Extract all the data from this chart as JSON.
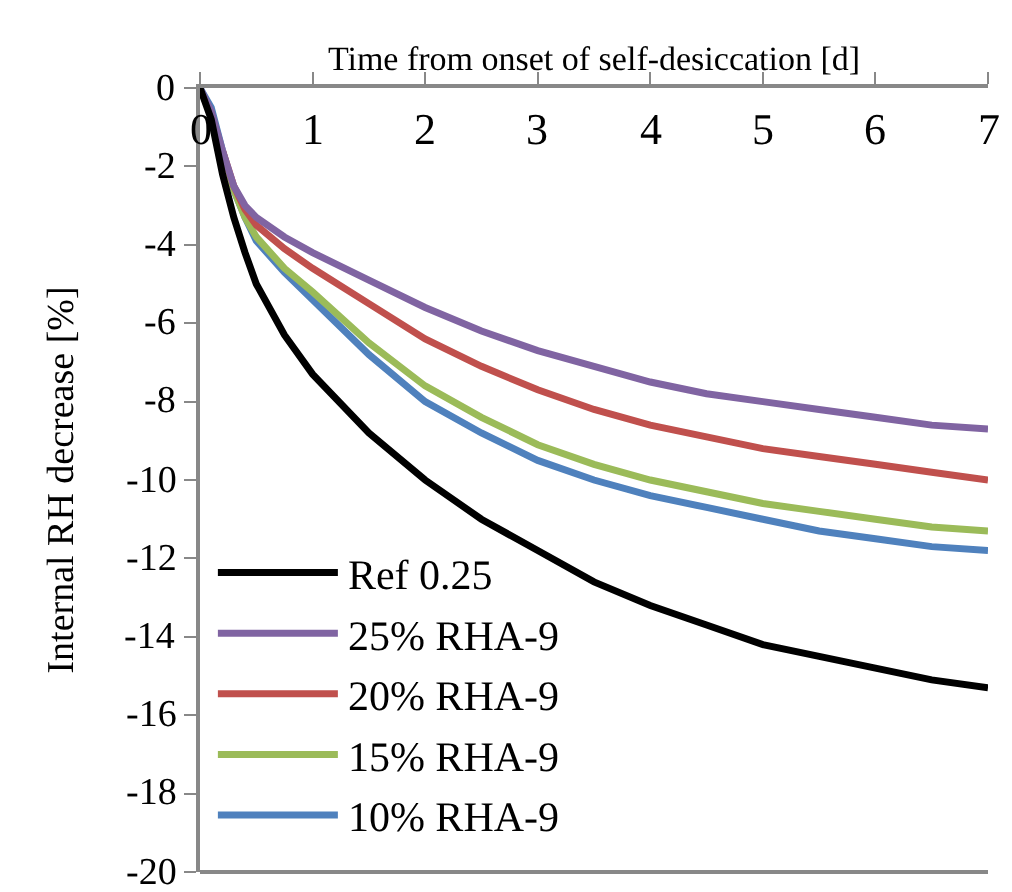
{
  "chart_data": {
    "type": "line",
    "xlabel": "Time from onset of self-desiccation [d]",
    "ylabel": "Internal RH decrease [%]",
    "x": [
      0,
      0.1,
      0.2,
      0.3,
      0.4,
      0.5,
      0.75,
      1,
      1.5,
      2,
      2.5,
      3,
      3.5,
      4,
      4.5,
      5,
      5.5,
      6,
      6.5,
      7
    ],
    "series": [
      {
        "name": "Ref 0.25",
        "color": "#000000",
        "values": [
          0,
          -0.8,
          -2.2,
          -3.3,
          -4.2,
          -5,
          -6.3,
          -7.3,
          -8.8,
          -10,
          -11,
          -11.8,
          -12.6,
          -13.2,
          -13.7,
          -14.2,
          -14.5,
          -14.8,
          -15.1,
          -15.3
        ]
      },
      {
        "name": "25% RHA-9",
        "color": "#8064a2",
        "values": [
          0,
          -0.6,
          -1.6,
          -2.5,
          -3,
          -3.3,
          -3.8,
          -4.2,
          -4.9,
          -5.6,
          -6.2,
          -6.7,
          -7.1,
          -7.5,
          -7.8,
          -8,
          -8.2,
          -8.4,
          -8.6,
          -8.7
        ]
      },
      {
        "name": "20% RHA-9",
        "color": "#c0504d",
        "values": [
          null,
          null,
          -1.6,
          -2.5,
          -3.1,
          -3.5,
          -4.1,
          -4.6,
          -5.5,
          -6.4,
          -7.1,
          -7.7,
          -8.2,
          -8.6,
          -8.9,
          -9.2,
          -9.4,
          -9.6,
          -9.8,
          -10
        ]
      },
      {
        "name": "15% RHA-9",
        "color": "#9bbb59",
        "values": [
          null,
          null,
          -1.7,
          -2.6,
          -3.3,
          -3.8,
          -4.6,
          -5.2,
          -6.5,
          -7.6,
          -8.4,
          -9.1,
          -9.6,
          -10,
          -10.3,
          -10.6,
          -10.8,
          -11,
          -11.2,
          -11.3
        ]
      },
      {
        "name": "10% RHA-9",
        "color": "#4f81bd",
        "values": [
          0,
          -0.5,
          -1.6,
          -2.6,
          -3.3,
          -3.9,
          -4.7,
          -5.4,
          -6.8,
          -8,
          -8.8,
          -9.5,
          -10,
          -10.4,
          -10.7,
          -11,
          -11.3,
          -11.5,
          -11.7,
          -11.8
        ]
      }
    ],
    "xlim": [
      0,
      7
    ],
    "xticks": [
      0,
      1,
      2,
      3,
      4,
      5,
      6,
      7
    ],
    "ylim": [
      -20,
      0
    ],
    "yticks": [
      -20,
      -18,
      -16,
      -14,
      -12,
      -10,
      -8,
      -6,
      -4,
      -2,
      0
    ],
    "grid": false,
    "legend": "bottom left",
    "marker": "none",
    "line_style": "solid"
  }
}
